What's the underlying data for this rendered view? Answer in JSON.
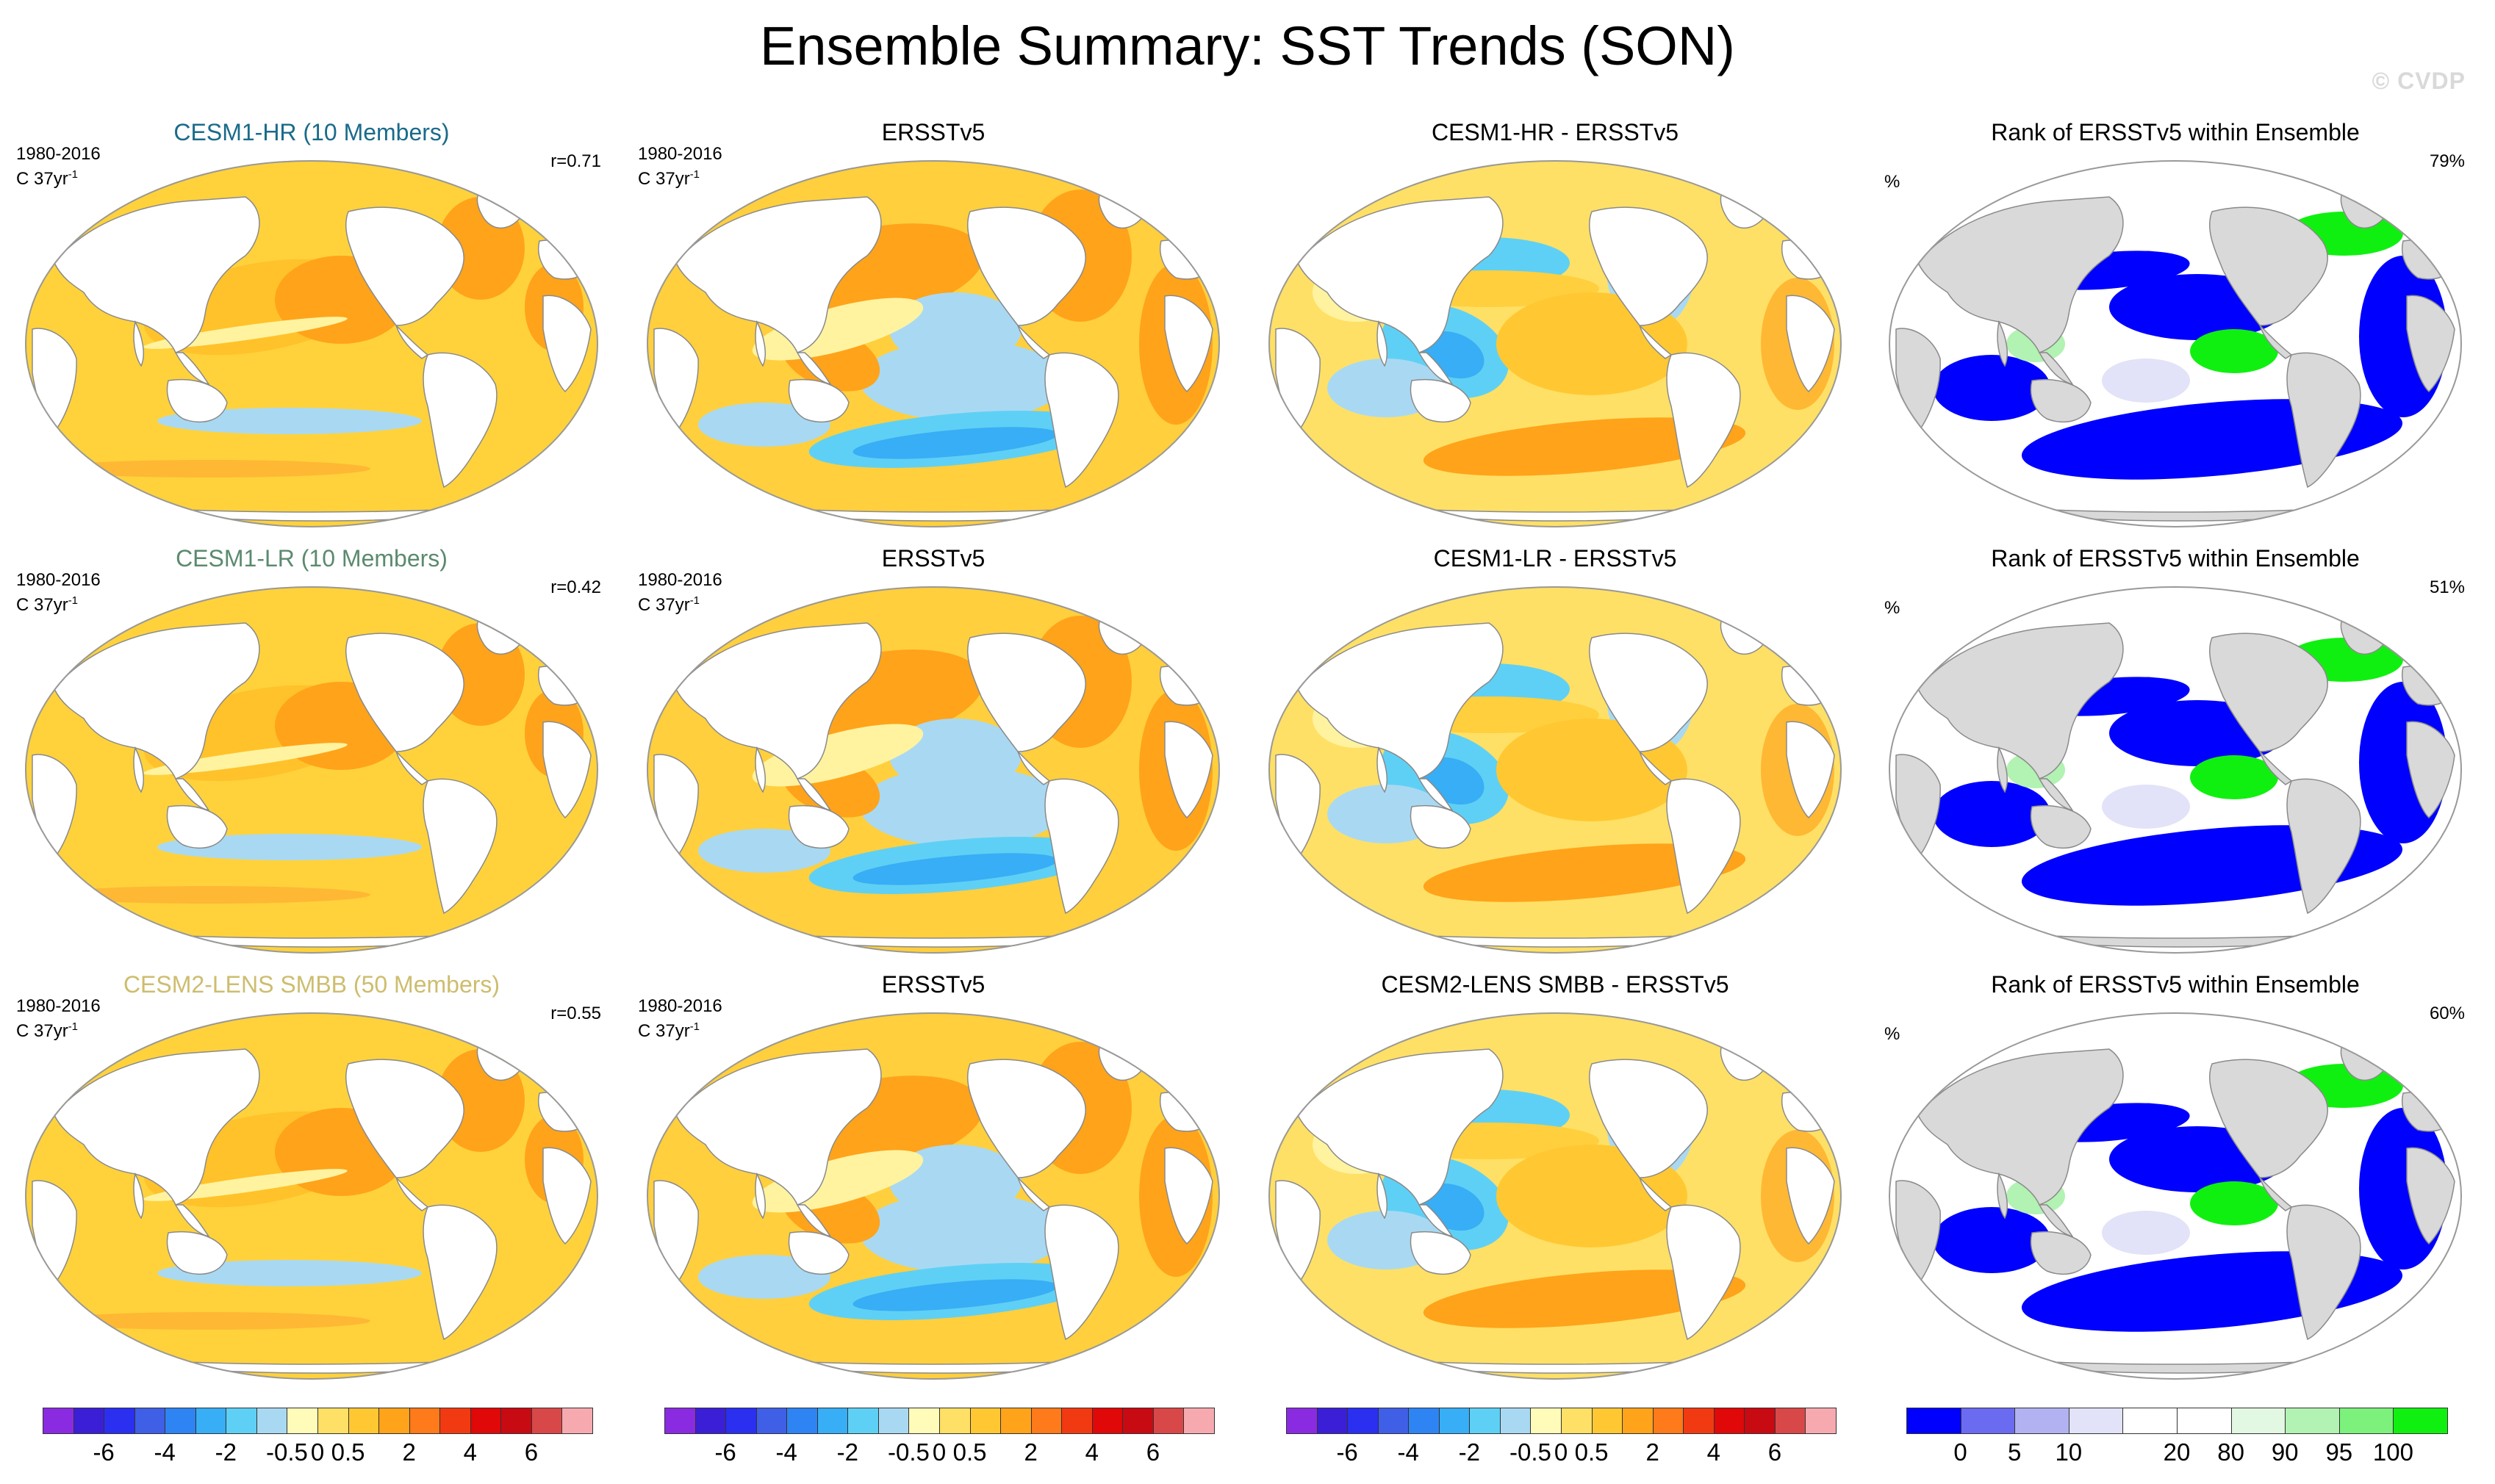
{
  "title": "Ensemble Summary: SST Trends (SON)",
  "watermark": "© CVDP",
  "rows": [
    {
      "model": "CESM1-HR (10 Members)",
      "model_color": "#1a6b8a",
      "period": "1980-2016",
      "units": "C 37yr",
      "units_sup": "-1",
      "corr": "r=0.71",
      "obs_title": "ERSSTv5",
      "diff_title": "CESM1-HR - ERSSTv5",
      "rank_title": "Rank of ERSSTv5 within Ensemble",
      "rank_unit": "%",
      "rank_pct": "79%"
    },
    {
      "model": "CESM1-LR (10 Members)",
      "model_color": "#5b8a6e",
      "period": "1980-2016",
      "units": "C 37yr",
      "units_sup": "-1",
      "corr": "r=0.42",
      "obs_title": "ERSSTv5",
      "diff_title": "CESM1-LR - ERSSTv5",
      "rank_title": "Rank of ERSSTv5 within Ensemble",
      "rank_unit": "%",
      "rank_pct": "51%"
    },
    {
      "model": "CESM2-LENS SMBB (50 Members)",
      "model_color": "#cdbd6e",
      "period": "1980-2016",
      "units": "C 37yr",
      "units_sup": "-1",
      "corr": "r=0.55",
      "obs_title": "ERSSTv5",
      "diff_title": "CESM2-LENS SMBB - ERSSTv5",
      "rank_title": "Rank of ERSSTv5 within Ensemble",
      "rank_unit": "%",
      "rank_pct": "60%"
    }
  ],
  "trend_colorbar": {
    "colors": [
      "#8a2be2",
      "#3b1fd6",
      "#2a2ff0",
      "#3f5fe6",
      "#2e84f2",
      "#37aef5",
      "#5fd0f5",
      "#a9d9f2",
      "#fffbb8",
      "#ffe066",
      "#ffc832",
      "#ffa31a",
      "#ff7a1a",
      "#f23a12",
      "#e00808",
      "#c80a12",
      "#d94848",
      "#f6aab0"
    ],
    "labels": [
      "-6",
      "-4",
      "-2",
      "-0.5",
      "0",
      "0.5",
      "2",
      "4",
      "6"
    ]
  },
  "rank_colorbar": {
    "colors": [
      "#0000ff",
      "#6b6bf2",
      "#b2b2f2",
      "#e2e2f8",
      "#ffffff",
      "#ffffff",
      "#e2f8e2",
      "#b2f2b2",
      "#7cf27c",
      "#10f010"
    ],
    "labels": [
      "0",
      "5",
      "10",
      "20",
      "80",
      "90",
      "95",
      "100"
    ]
  }
}
